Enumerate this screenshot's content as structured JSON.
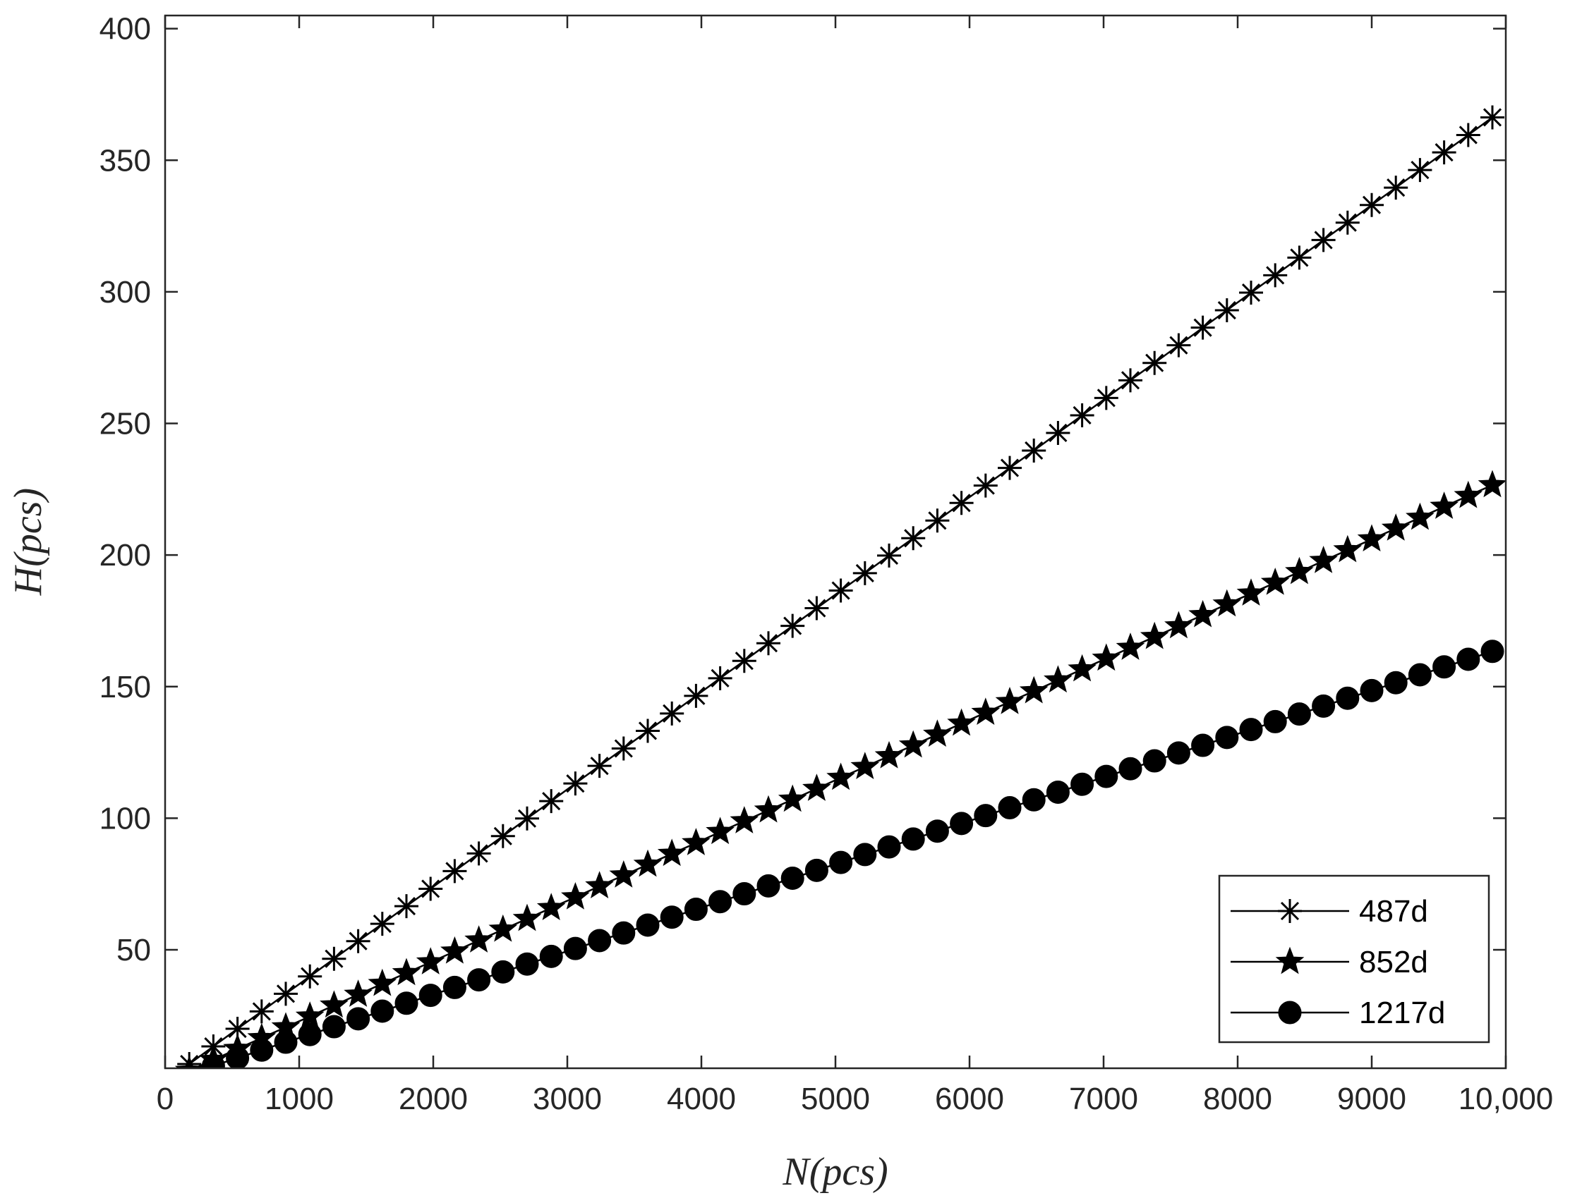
{
  "chart_data": {
    "type": "line",
    "xlabel": "N(pcs)",
    "ylabel": "H(pcs)",
    "xlim": [
      0,
      10000
    ],
    "ylim": [
      5,
      405
    ],
    "xticks": [
      0,
      1000,
      2000,
      3000,
      4000,
      5000,
      6000,
      7000,
      8000,
      9000,
      10000
    ],
    "xtick_labels": [
      "0",
      "1000",
      "2000",
      "3000",
      "4000",
      "5000",
      "6000",
      "7000",
      "8000",
      "9000",
      "10,000"
    ],
    "yticks": [
      50,
      100,
      150,
      200,
      250,
      300,
      350,
      400
    ],
    "ytick_labels": [
      "50",
      "100",
      "150",
      "200",
      "250",
      "300",
      "350",
      "400"
    ],
    "grid": false,
    "legend_position": "bottom-right",
    "x": [
      180,
      360,
      540,
      720,
      900,
      1080,
      1260,
      1440,
      1620,
      1800,
      1980,
      2160,
      2340,
      2520,
      2700,
      2880,
      3060,
      3240,
      3420,
      3600,
      3780,
      3960,
      4140,
      4320,
      4500,
      4680,
      4860,
      5040,
      5220,
      5400,
      5580,
      5760,
      5940,
      6120,
      6300,
      6480,
      6660,
      6840,
      7020,
      7200,
      7380,
      7560,
      7740,
      7920,
      8100,
      8280,
      8460,
      8640,
      8820,
      9000,
      9180,
      9360,
      9540,
      9720,
      9900
    ],
    "series": [
      {
        "name": "487d",
        "marker": "asterisk",
        "values": [
          6.6,
          13.3,
          20.0,
          26.6,
          33.3,
          39.9,
          46.6,
          53.3,
          59.9,
          66.6,
          73.2,
          79.9,
          86.6,
          93.2,
          99.9,
          106.5,
          113.2,
          119.9,
          126.5,
          133.2,
          139.8,
          146.5,
          153.2,
          159.8,
          166.5,
          173.1,
          179.8,
          186.5,
          193.1,
          199.8,
          206.4,
          213.1,
          219.8,
          226.4,
          233.1,
          239.7,
          246.4,
          253.1,
          259.7,
          266.4,
          273.0,
          279.7,
          286.4,
          293.0,
          299.7,
          306.3,
          313.0,
          319.7,
          326.3,
          333.0,
          339.6,
          346.3,
          353.0,
          359.6,
          366.3
        ]
      },
      {
        "name": "852d",
        "marker": "pentagram",
        "values": [
          4.1,
          8.2,
          12.4,
          16.5,
          20.6,
          24.7,
          28.9,
          33.0,
          37.1,
          41.2,
          45.3,
          49.4,
          53.6,
          57.7,
          61.8,
          65.9,
          70.0,
          74.2,
          78.3,
          82.4,
          86.5,
          90.6,
          94.8,
          98.9,
          103.0,
          107.1,
          111.2,
          115.4,
          119.5,
          123.6,
          127.7,
          131.8,
          136.0,
          140.1,
          144.2,
          148.3,
          152.4,
          156.6,
          160.7,
          164.8,
          168.9,
          173.0,
          177.2,
          181.3,
          185.4,
          189.5,
          193.6,
          197.8,
          201.9,
          206.0,
          210.1,
          214.2,
          218.4,
          222.5,
          226.6
        ]
      },
      {
        "name": "1217d",
        "marker": "circle",
        "values": [
          null,
          5.9,
          8.9,
          11.9,
          14.9,
          17.8,
          20.8,
          23.8,
          26.7,
          29.7,
          32.7,
          35.7,
          38.6,
          41.6,
          44.6,
          47.5,
          50.5,
          53.5,
          56.4,
          59.4,
          62.4,
          65.4,
          68.3,
          71.3,
          74.3,
          77.2,
          80.2,
          83.2,
          86.2,
          89.1,
          92.1,
          95.1,
          98.0,
          101.0,
          104.0,
          107.0,
          109.9,
          112.9,
          115.9,
          118.8,
          121.8,
          124.8,
          127.7,
          130.7,
          133.7,
          136.7,
          139.6,
          142.6,
          145.6,
          148.5,
          151.5,
          154.5,
          157.5,
          160.4,
          163.4
        ]
      }
    ]
  }
}
